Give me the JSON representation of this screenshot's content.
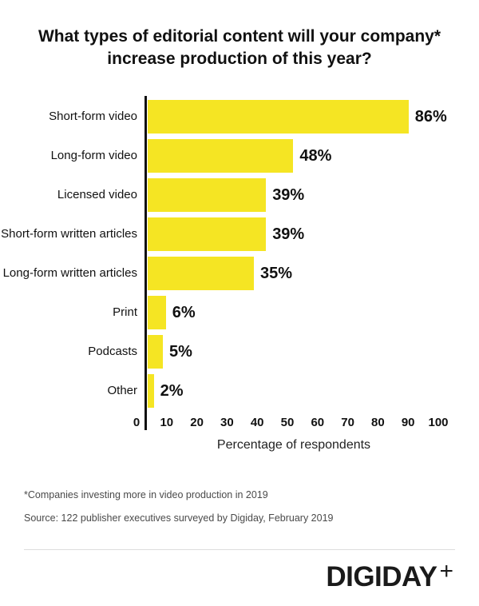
{
  "title": "What types of editorial content will your company* increase production of this year?",
  "chart_data": {
    "type": "bar",
    "orientation": "horizontal",
    "title": "What types of editorial content will your company* increase production of this year?",
    "categories": [
      "Short-form video",
      "Long-form video",
      "Licensed video",
      "Short-form written articles",
      "Long-form written articles",
      "Print",
      "Podcasts",
      "Other"
    ],
    "values": [
      86,
      48,
      39,
      39,
      35,
      6,
      5,
      2
    ],
    "value_labels": [
      "86%",
      "48%",
      "39%",
      "39%",
      "35%",
      "6%",
      "5%",
      "2%"
    ],
    "xlabel": "Percentage of respondents",
    "ylabel": "",
    "xlim": [
      0,
      100
    ],
    "xticks": [
      0,
      10,
      20,
      30,
      40,
      50,
      60,
      70,
      80,
      90,
      100
    ],
    "grid": false,
    "legend": false,
    "bar_color": "#F5E523",
    "axis_color": "#111111"
  },
  "footnotes": {
    "note1": "*Companies investing more in video production in 2019",
    "note2": "Source: 122 publisher executives surveyed by Digiday, February 2019"
  },
  "logo": {
    "text": "DIGIDAY",
    "plus": "+"
  }
}
